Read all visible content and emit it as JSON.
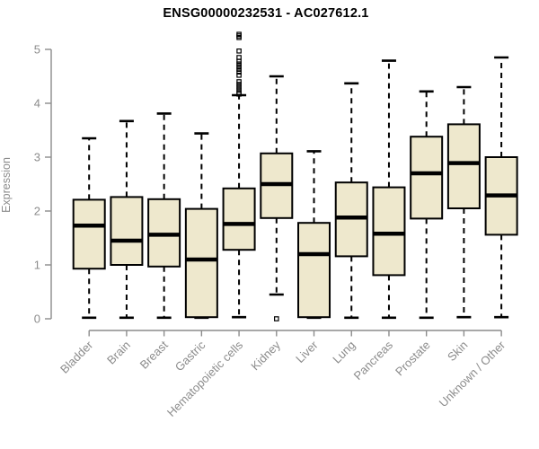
{
  "title": "ENSG00000232531 - AC027612.1",
  "chart_data": {
    "type": "boxplot",
    "title": "ENSG00000232531 - AC027612.1",
    "xlabel": "",
    "ylabel": "Expression",
    "ylim": [
      0,
      5
    ],
    "yticks": [
      0,
      1,
      2,
      3,
      4,
      5
    ],
    "grid": false,
    "legend": "none",
    "box_fill": "#EEE8CD",
    "box_stroke": "#000000",
    "axis_color": "#8c8c8c",
    "label_color": "#8c8c8c",
    "categories": [
      "Bladder",
      "Brain",
      "Breast",
      "Gastric",
      "Hematopoietic cells",
      "Kidney",
      "Liver",
      "Lung",
      "Pancreas",
      "Prostate",
      "Skin",
      "Unknown / Other"
    ],
    "series": [
      {
        "name": "Bladder",
        "low": 0.02,
        "q1": 0.93,
        "median": 1.73,
        "q3": 2.21,
        "high": 3.35,
        "outliers": []
      },
      {
        "name": "Brain",
        "low": 0.02,
        "q1": 1.0,
        "median": 1.45,
        "q3": 2.26,
        "high": 3.67,
        "outliers": []
      },
      {
        "name": "Breast",
        "low": 0.02,
        "q1": 0.97,
        "median": 1.56,
        "q3": 2.22,
        "high": 3.81,
        "outliers": []
      },
      {
        "name": "Gastric",
        "low": 0.02,
        "q1": 0.03,
        "median": 1.1,
        "q3": 2.04,
        "high": 3.44,
        "outliers": []
      },
      {
        "name": "Hematopoietic cells",
        "low": 0.03,
        "q1": 1.28,
        "median": 1.76,
        "q3": 2.42,
        "high": 4.15,
        "outliers": [
          4.17,
          4.2,
          4.25,
          4.3,
          4.35,
          4.4,
          4.52,
          4.58,
          4.63,
          4.68,
          4.73,
          4.78,
          4.85,
          4.97,
          5.22,
          5.25,
          5.28
        ]
      },
      {
        "name": "Kidney",
        "low": 0.45,
        "q1": 1.87,
        "median": 2.5,
        "q3": 3.07,
        "high": 4.5,
        "outliers": [
          0.0
        ]
      },
      {
        "name": "Liver",
        "low": 0.02,
        "q1": 0.03,
        "median": 1.2,
        "q3": 1.78,
        "high": 3.11,
        "outliers": []
      },
      {
        "name": "Lung",
        "low": 0.02,
        "q1": 1.16,
        "median": 1.88,
        "q3": 2.53,
        "high": 4.37,
        "outliers": []
      },
      {
        "name": "Pancreas",
        "low": 0.02,
        "q1": 0.81,
        "median": 1.58,
        "q3": 2.44,
        "high": 4.79,
        "outliers": []
      },
      {
        "name": "Prostate",
        "low": 0.02,
        "q1": 1.86,
        "median": 2.7,
        "q3": 3.38,
        "high": 4.22,
        "outliers": []
      },
      {
        "name": "Skin",
        "low": 0.03,
        "q1": 2.05,
        "median": 2.89,
        "q3": 3.61,
        "high": 4.3,
        "outliers": []
      },
      {
        "name": "Unknown / Other",
        "low": 0.03,
        "q1": 1.56,
        "median": 2.29,
        "q3": 3.0,
        "high": 4.85,
        "outliers": []
      }
    ]
  }
}
